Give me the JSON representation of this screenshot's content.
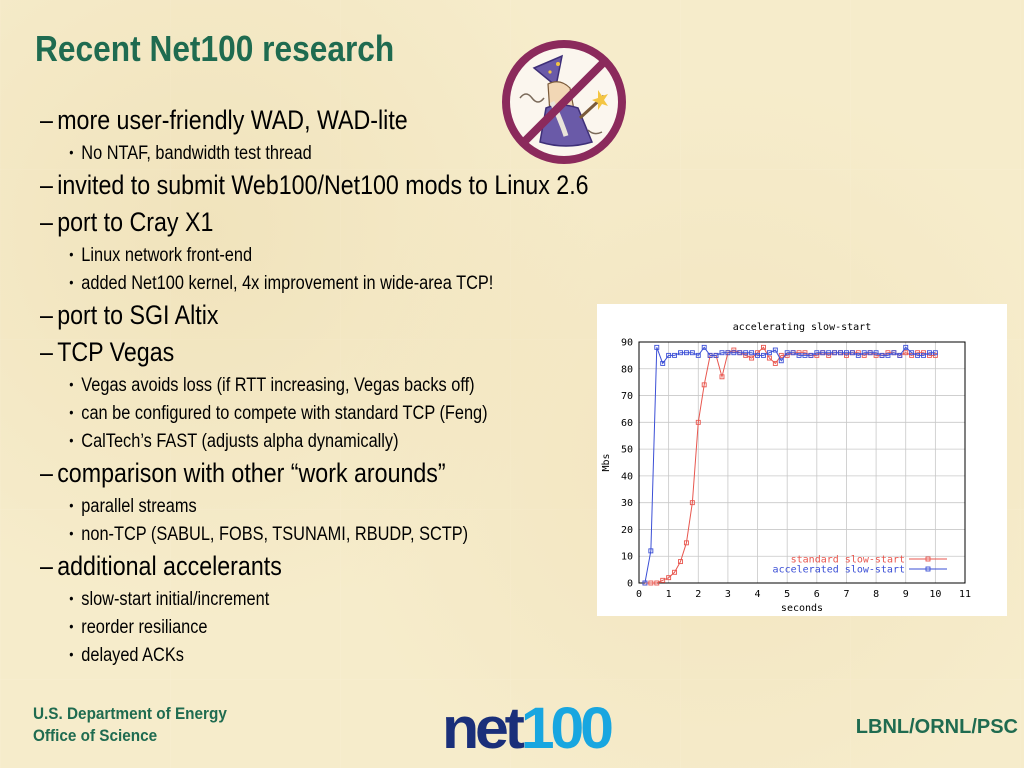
{
  "slide": {
    "title": "Recent Net100 research",
    "items": [
      {
        "text": "more user-friendly WAD, WAD-lite",
        "sub": [
          "No NTAF, bandwidth test thread"
        ]
      },
      {
        "text": "invited to submit Web100/Net100 mods to Linux 2.6",
        "sub": []
      },
      {
        "text": "port to Cray X1",
        "sub": [
          "Linux network front-end",
          "added Net100 kernel, 4x improvement in wide-area TCP!"
        ]
      },
      {
        "text": "port to SGI Altix",
        "sub": []
      },
      {
        "text": "TCP Vegas",
        "sub": [
          "Vegas avoids loss (if RTT increasing, Vegas backs off)",
          "can be configured to compete with standard TCP (Feng)",
          "CalTech’s FAST (adjusts alpha dynamically)"
        ]
      },
      {
        "text": "comparison with other “work arounds”",
        "sub": [
          "parallel streams",
          "non-TCP  (SABUL, FOBS, TSUNAMI, RBUDP, SCTP)"
        ]
      },
      {
        "text": "additional accelerants",
        "sub": [
          "slow-start initial/increment",
          "reorder resiliance",
          "delayed ACKs"
        ]
      }
    ],
    "bullet_dash": "–",
    "bullet_dot": "•"
  },
  "footer": {
    "left_line1": "U.S. Department of Energy",
    "left_line2": "Office of Science",
    "right": "LBNL/ORNL/PSC",
    "logo_part1": "net",
    "logo_part2": "100"
  },
  "icons": {
    "wizard": "no-wizard-icon"
  },
  "colors": {
    "title": "#1f6b50",
    "standard": "#e8574f",
    "accelerated": "#3b4fd6",
    "logo_dark": "#1a2f7a",
    "logo_light": "#18a6e0",
    "nosign": "#8b2a5c"
  },
  "chart_data": {
    "type": "line",
    "title": "accelerating slow-start",
    "xlabel": "seconds",
    "ylabel": "Mbs",
    "xlim": [
      0,
      11
    ],
    "ylim": [
      0,
      90
    ],
    "xticks": [
      0,
      1,
      2,
      3,
      4,
      5,
      6,
      7,
      8,
      9,
      10,
      11
    ],
    "yticks": [
      0,
      10,
      20,
      30,
      40,
      50,
      60,
      70,
      80,
      90
    ],
    "grid": true,
    "legend": "bottom-right",
    "series": [
      {
        "name": "standard slow-start",
        "color": "#e8574f",
        "x": [
          0.2,
          0.4,
          0.6,
          0.8,
          1.0,
          1.2,
          1.4,
          1.6,
          1.8,
          2.0,
          2.2,
          2.4,
          2.6,
          2.8,
          3.0,
          3.2,
          3.4,
          3.6,
          3.8,
          4.0,
          4.2,
          4.4,
          4.6,
          4.8,
          5.0,
          5.2,
          5.4,
          5.6,
          5.8,
          6.0,
          6.2,
          6.4,
          6.6,
          6.8,
          7.0,
          7.2,
          7.4,
          7.6,
          7.8,
          8.0,
          8.2,
          8.4,
          8.6,
          8.8,
          9.0,
          9.2,
          9.4,
          9.6,
          9.8,
          10.0
        ],
        "y": [
          0,
          0,
          0,
          1,
          2,
          4,
          8,
          15,
          30,
          60,
          74,
          85,
          85,
          77,
          86,
          87,
          86,
          85,
          84,
          86,
          88,
          84,
          82,
          85,
          85,
          86,
          86,
          86,
          85,
          85,
          86,
          85,
          86,
          86,
          85,
          86,
          86,
          85,
          86,
          85,
          85,
          86,
          86,
          85,
          86,
          85,
          86,
          86,
          85,
          85
        ]
      },
      {
        "name": "accelerated slow-start",
        "color": "#3b4fd6",
        "x": [
          0.2,
          0.4,
          0.6,
          0.8,
          1.0,
          1.2,
          1.4,
          1.6,
          1.8,
          2.0,
          2.2,
          2.4,
          2.6,
          2.8,
          3.0,
          3.2,
          3.4,
          3.6,
          3.8,
          4.0,
          4.2,
          4.4,
          4.6,
          4.8,
          5.0,
          5.2,
          5.4,
          5.6,
          5.8,
          6.0,
          6.2,
          6.4,
          6.6,
          6.8,
          7.0,
          7.2,
          7.4,
          7.6,
          7.8,
          8.0,
          8.2,
          8.4,
          8.6,
          8.8,
          9.0,
          9.2,
          9.4,
          9.6,
          9.8,
          10.0
        ],
        "y": [
          0,
          12,
          88,
          82,
          85,
          85,
          86,
          86,
          86,
          85,
          88,
          85,
          85,
          86,
          86,
          86,
          86,
          86,
          86,
          85,
          85,
          86,
          87,
          83,
          86,
          86,
          85,
          85,
          85,
          86,
          86,
          86,
          86,
          86,
          86,
          86,
          85,
          86,
          86,
          86,
          85,
          85,
          86,
          85,
          88,
          86,
          85,
          85,
          86,
          86
        ]
      }
    ]
  }
}
